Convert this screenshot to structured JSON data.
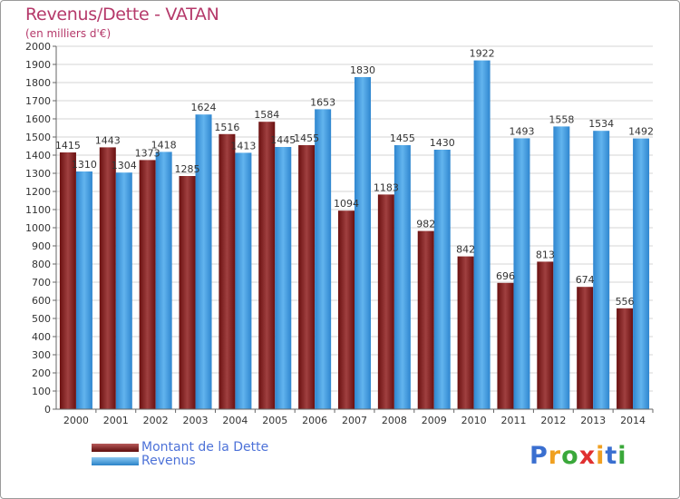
{
  "chart_data": {
    "type": "bar",
    "title": "Revenus/Dette - VATAN",
    "subtitle": "(en milliers d'€)",
    "xlabel": "",
    "ylabel": "",
    "categories": [
      "2000",
      "2001",
      "2002",
      "2003",
      "2004",
      "2005",
      "2006",
      "2007",
      "2008",
      "2009",
      "2010",
      "2011",
      "2012",
      "2013",
      "2014"
    ],
    "series": [
      {
        "name": "Montant de la Dette",
        "color": "#7b1a1a",
        "values": [
          1415,
          1443,
          1373,
          1285,
          1516,
          1584,
          1455,
          1094,
          1183,
          982,
          842,
          696,
          813,
          674,
          556
        ]
      },
      {
        "name": "Revenus",
        "color": "#3d98dc",
        "values": [
          1310,
          1304,
          1418,
          1624,
          1413,
          1445,
          1653,
          1830,
          1455,
          1430,
          1922,
          1493,
          1558,
          1534,
          1492
        ]
      }
    ],
    "ylim": [
      0,
      2000
    ],
    "yticks": [
      0,
      100,
      200,
      300,
      400,
      500,
      600,
      700,
      800,
      900,
      1000,
      1100,
      1200,
      1300,
      1400,
      1500,
      1600,
      1700,
      1800,
      1900,
      2000
    ],
    "grid": true,
    "legend_position": "bottom-left"
  },
  "logo": {
    "letters": [
      "P",
      "r",
      "o",
      "x",
      "i",
      "t",
      "i"
    ],
    "colors": [
      "#3a6fd0",
      "#f0a020",
      "#3aa83a",
      "#e03030",
      "#f0a020",
      "#3a6fd0",
      "#3aa83a"
    ]
  }
}
